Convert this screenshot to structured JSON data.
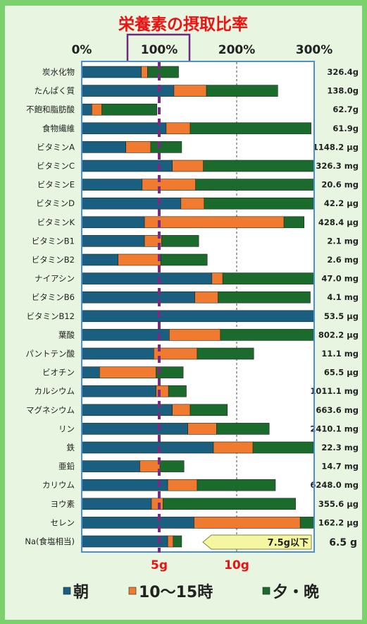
{
  "chart_data": {
    "type": "bar",
    "stacked": true,
    "orientation": "horizontal",
    "title": "栄養素の摂取比率",
    "x_ticks": [
      "0%",
      "100%",
      "200%",
      "300%"
    ],
    "xlim": [
      0,
      300
    ],
    "unit": "%",
    "categories": [
      "炭水化物",
      "たんぱく質",
      "不飽和脂肪酸",
      "食物繊維",
      "ビタミンA",
      "ビタミンC",
      "ビタミンE",
      "ビタミンD",
      "ビタミンK",
      "ビタミンB1",
      "ビタミンB2",
      "ナイアシン",
      "ビタミンB6",
      "ビタミンB12",
      "葉酸",
      "パントテン酸",
      "ビオチン",
      "カルシウム",
      "マグネシウム",
      "リン",
      "鉄",
      "亜鉛",
      "カリウム",
      "ヨウ素",
      "セレン",
      "Na(食塩相当)"
    ],
    "amounts": [
      "326.4g",
      "138.0g",
      "62.7g",
      "61.9g",
      "1148.2 μg",
      "326.3 mg",
      "20.6 mg",
      "42.2 μg",
      "428.4 μg",
      "2.1 mg",
      "2.6 mg",
      "47.0 mg",
      "4.1 mg",
      "53.5 μg",
      "802.2 μg",
      "11.1 mg",
      "65.5 μg",
      "1011.1 mg",
      "663.6 mg",
      "2410.1 mg",
      "22.3 mg",
      "14.7 mg",
      "6248.0 mg",
      "355.6 μg",
      "162.2 μg",
      "6.5 g"
    ],
    "series": [
      {
        "name": "朝",
        "color": "#1a5e80",
        "values": [
          77,
          119,
          13,
          109,
          57,
          117,
          78,
          128,
          81,
          81,
          47,
          168,
          146,
          300,
          113,
          93,
          23,
          96,
          117,
          137,
          170,
          75,
          111,
          90,
          145,
          111
        ]
      },
      {
        "name": "10〜15時",
        "color": "#f07a2f",
        "values": [
          8,
          42,
          13,
          31,
          32,
          40,
          69,
          30,
          180,
          22,
          55,
          14,
          30,
          0,
          66,
          56,
          73,
          16,
          23,
          37,
          51,
          26,
          38,
          15,
          137,
          7
        ]
      },
      {
        "name": "夕・晩",
        "color": "#1a6b2c",
        "values": [
          40,
          92,
          71,
          156,
          40,
          145,
          155,
          145,
          26,
          48,
          60,
          120,
          119,
          0,
          123,
          73,
          35,
          23,
          48,
          68,
          78,
          31,
          101,
          171,
          20,
          11
        ]
      }
    ],
    "markers": [
      {
        "label": "5g",
        "value": 100
      },
      {
        "label": "10g",
        "value": 200
      }
    ],
    "annotation": "7.5g以下",
    "grid": true,
    "legend": "bottom"
  }
}
